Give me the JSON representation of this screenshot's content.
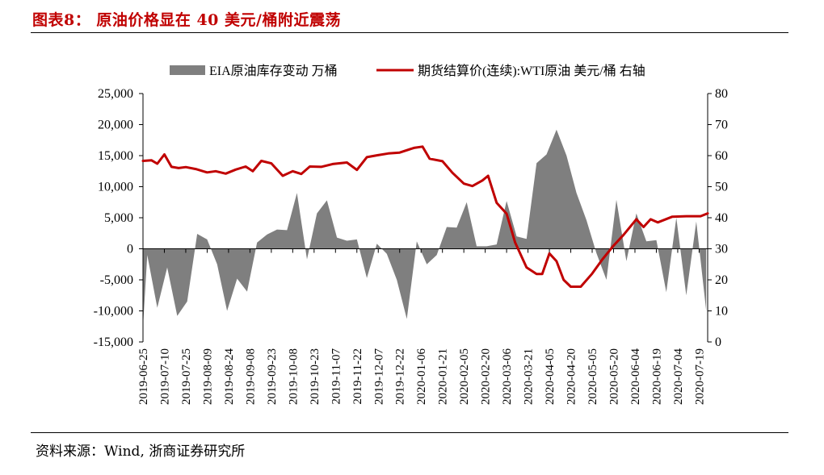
{
  "header": {
    "title": "图表8：  原油价格显在 40 美元/桶附近震荡"
  },
  "footer": {
    "source": "资料来源：Wind, 浙商证券研究所"
  },
  "chart_data": {
    "type": "area+line",
    "legend": {
      "bar_label": "EIA原油库存变动 万桶",
      "line_label": "期货结算价(连续):WTI原油 美元/桶 右轴",
      "position": "top-center"
    },
    "colors": {
      "area": "#7f7f7f",
      "line": "#c00000"
    },
    "left_axis": {
      "min": -15000,
      "max": 25000,
      "step": 5000,
      "tick_labels": [
        "25,000",
        "20,000",
        "15,000",
        "10,000",
        "5,000",
        "0",
        "-5,000",
        "-10,000",
        "-15,000"
      ]
    },
    "right_axis": {
      "min": 0,
      "max": 80,
      "step": 10,
      "tick_labels": [
        "80",
        "70",
        "60",
        "50",
        "40",
        "30",
        "20",
        "10",
        "0"
      ]
    },
    "x_tick_labels": [
      "2019-06-25",
      "2019-07-10",
      "2019-07-25",
      "2019-08-09",
      "2019-08-24",
      "2019-09-08",
      "2019-09-23",
      "2019-10-08",
      "2019-10-23",
      "2019-11-07",
      "2019-11-22",
      "2019-12-07",
      "2019-12-22",
      "2020-01-06",
      "2020-01-21",
      "2020-02-05",
      "2020-02-20",
      "2020-03-06",
      "2020-03-21",
      "2020-04-05",
      "2020-04-20",
      "2020-05-05",
      "2020-05-20",
      "2020-06-04",
      "2020-06-19",
      "2020-07-04",
      "2020-07-19"
    ],
    "date_range": [
      "2019-06-25",
      "2020-07-25"
    ],
    "series": [
      {
        "name": "EIA原油库存变动 万桶",
        "kind": "area",
        "axis": "left",
        "points": [
          [
            "2019-06-25",
            -12500
          ],
          [
            "2019-06-28",
            -1000
          ],
          [
            "2019-07-05",
            -9500
          ],
          [
            "2019-07-12",
            -3000
          ],
          [
            "2019-07-19",
            -10800
          ],
          [
            "2019-07-26",
            -8500
          ],
          [
            "2019-08-02",
            2400
          ],
          [
            "2019-08-09",
            1500
          ],
          [
            "2019-08-16",
            -2500
          ],
          [
            "2019-08-23",
            -10000
          ],
          [
            "2019-08-30",
            -4800
          ],
          [
            "2019-09-06",
            -6900
          ],
          [
            "2019-09-13",
            1000
          ],
          [
            "2019-09-20",
            2300
          ],
          [
            "2019-09-27",
            3100
          ],
          [
            "2019-10-04",
            3000
          ],
          [
            "2019-10-11",
            9000
          ],
          [
            "2019-10-18",
            -1700
          ],
          [
            "2019-10-25",
            5700
          ],
          [
            "2019-11-01",
            7800
          ],
          [
            "2019-11-08",
            1800
          ],
          [
            "2019-11-15",
            1300
          ],
          [
            "2019-11-22",
            1500
          ],
          [
            "2019-11-29",
            -4700
          ],
          [
            "2019-12-06",
            800
          ],
          [
            "2019-12-13",
            -800
          ],
          [
            "2019-12-20",
            -5000
          ],
          [
            "2019-12-27",
            -11300
          ],
          [
            "2020-01-03",
            1200
          ],
          [
            "2020-01-10",
            -2500
          ],
          [
            "2020-01-17",
            -1000
          ],
          [
            "2020-01-24",
            3500
          ],
          [
            "2020-01-31",
            3400
          ],
          [
            "2020-02-07",
            7500
          ],
          [
            "2020-02-14",
            400
          ],
          [
            "2020-02-21",
            400
          ],
          [
            "2020-02-28",
            700
          ],
          [
            "2020-03-06",
            7700
          ],
          [
            "2020-03-13",
            2000
          ],
          [
            "2020-03-20",
            1600
          ],
          [
            "2020-03-27",
            13800
          ],
          [
            "2020-04-03",
            15200
          ],
          [
            "2020-04-10",
            19200
          ],
          [
            "2020-04-17",
            15000
          ],
          [
            "2020-04-24",
            9000
          ],
          [
            "2020-05-01",
            4600
          ],
          [
            "2020-05-08",
            -700
          ],
          [
            "2020-05-15",
            -5000
          ],
          [
            "2020-05-22",
            7900
          ],
          [
            "2020-05-29",
            -2000
          ],
          [
            "2020-06-05",
            5700
          ],
          [
            "2020-06-12",
            1200
          ],
          [
            "2020-06-19",
            1400
          ],
          [
            "2020-06-26",
            -7000
          ],
          [
            "2020-07-03",
            5000
          ],
          [
            "2020-07-10",
            -7500
          ],
          [
            "2020-07-17",
            4400
          ],
          [
            "2020-07-24",
            -10000
          ]
        ]
      },
      {
        "name": "期货结算价(连续):WTI原油 美元/桶 右轴",
        "kind": "line",
        "axis": "right",
        "points": [
          [
            "2019-06-25",
            58.3
          ],
          [
            "2019-07-01",
            58.5
          ],
          [
            "2019-07-05",
            57.4
          ],
          [
            "2019-07-10",
            60.4
          ],
          [
            "2019-07-15",
            56.4
          ],
          [
            "2019-07-20",
            56.0
          ],
          [
            "2019-07-25",
            56.3
          ],
          [
            "2019-08-01",
            55.7
          ],
          [
            "2019-08-09",
            54.6
          ],
          [
            "2019-08-15",
            55.0
          ],
          [
            "2019-08-22",
            54.2
          ],
          [
            "2019-08-29",
            55.5
          ],
          [
            "2019-09-05",
            56.5
          ],
          [
            "2019-09-10",
            55.0
          ],
          [
            "2019-09-16",
            58.3
          ],
          [
            "2019-09-23",
            57.5
          ],
          [
            "2019-10-01",
            53.5
          ],
          [
            "2019-10-08",
            55.0
          ],
          [
            "2019-10-14",
            54.1
          ],
          [
            "2019-10-20",
            56.5
          ],
          [
            "2019-10-28",
            56.4
          ],
          [
            "2019-11-05",
            57.3
          ],
          [
            "2019-11-15",
            57.8
          ],
          [
            "2019-11-22",
            55.4
          ],
          [
            "2019-11-29",
            59.5
          ],
          [
            "2019-12-06",
            60.1
          ],
          [
            "2019-12-14",
            60.7
          ],
          [
            "2019-12-22",
            61.0
          ],
          [
            "2020-01-01",
            62.5
          ],
          [
            "2020-01-07",
            62.9
          ],
          [
            "2020-01-12",
            59.0
          ],
          [
            "2020-01-21",
            58.2
          ],
          [
            "2020-01-28",
            54.5
          ],
          [
            "2020-02-05",
            51.0
          ],
          [
            "2020-02-11",
            50.2
          ],
          [
            "2020-02-18",
            52.0
          ],
          [
            "2020-02-22",
            53.5
          ],
          [
            "2020-02-28",
            44.8
          ],
          [
            "2020-03-06",
            41.3
          ],
          [
            "2020-03-12",
            32.0
          ],
          [
            "2020-03-20",
            24.0
          ],
          [
            "2020-03-27",
            21.9
          ],
          [
            "2020-03-31",
            21.9
          ],
          [
            "2020-04-05",
            28.5
          ],
          [
            "2020-04-10",
            26.0
          ],
          [
            "2020-04-15",
            20.0
          ],
          [
            "2020-04-20",
            17.8
          ],
          [
            "2020-04-27",
            17.8
          ],
          [
            "2020-05-05",
            22.0
          ],
          [
            "2020-05-12",
            26.5
          ],
          [
            "2020-05-20",
            31.0
          ],
          [
            "2020-05-27",
            34.5
          ],
          [
            "2020-06-05",
            39.5
          ],
          [
            "2020-06-10",
            37.0
          ],
          [
            "2020-06-15",
            39.5
          ],
          [
            "2020-06-20",
            38.5
          ],
          [
            "2020-06-30",
            40.3
          ],
          [
            "2020-07-10",
            40.5
          ],
          [
            "2020-07-20",
            40.5
          ],
          [
            "2020-07-25",
            41.4
          ]
        ]
      }
    ]
  }
}
